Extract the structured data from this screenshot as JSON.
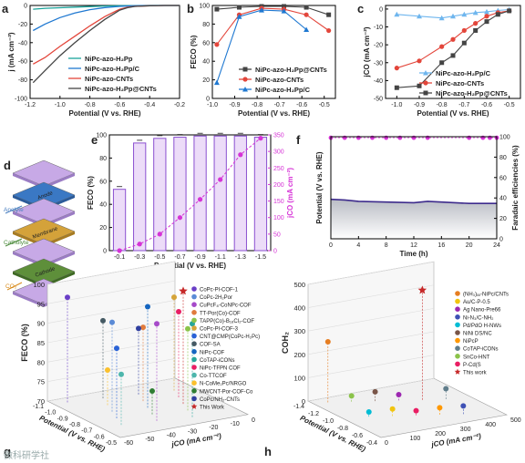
{
  "watermark": "微科研学社",
  "colors": {
    "black": "#333333",
    "red": "#e3463b",
    "blue": "#1f78d1",
    "violet": "#b157e0",
    "magenta": "#d633d6",
    "teal": "#1aa39a",
    "lightblue": "#6fb6ee",
    "star": "#c62828"
  },
  "chart_data": [
    {
      "panel": "a",
      "type": "line",
      "xlabel": "Potential (V vs. RHE)",
      "ylabel": "j (mA cm⁻²)",
      "xlim": [
        -1.2,
        -0.2
      ],
      "ylim": [
        -100,
        0
      ],
      "xticks": [
        "-1.2",
        "-1.0",
        "-0.8",
        "-0.6",
        "-0.4",
        "-0.2"
      ],
      "yticks": [
        "-100",
        "-80",
        "-60",
        "-40",
        "-20",
        "0"
      ],
      "series": [
        {
          "name": "NiPc-azo-H₂Pp",
          "color": "#1aa39a",
          "x": [
            -1.18,
            -1.1,
            -1.0,
            -0.9,
            -0.8,
            -0.7,
            -0.6,
            -0.5,
            -0.4,
            -0.3,
            -0.2
          ],
          "y": [
            -4,
            -3,
            -2.5,
            -1.8,
            -1.2,
            -0.6,
            -0.3,
            -0.1,
            0,
            0,
            0
          ]
        },
        {
          "name": "NiPc-azo-H₂Pp/C",
          "color": "#1f78d1",
          "x": [
            -1.18,
            -1.1,
            -1.0,
            -0.9,
            -0.8,
            -0.7,
            -0.6,
            -0.5,
            -0.4,
            -0.3,
            -0.2
          ],
          "y": [
            -27,
            -20,
            -13,
            -8,
            -4.5,
            -2.3,
            -1,
            -0.3,
            0,
            0,
            0
          ]
        },
        {
          "name": "NiPc-azo-CNTs",
          "color": "#e3463b",
          "x": [
            -1.18,
            -1.1,
            -1.0,
            -0.9,
            -0.8,
            -0.7,
            -0.6,
            -0.55,
            -0.5,
            -0.4,
            -0.3,
            -0.2
          ],
          "y": [
            -63,
            -56,
            -44,
            -33,
            -22,
            -12,
            -4,
            -2,
            -1,
            -0.3,
            0,
            0
          ]
        },
        {
          "name": "NiPc-azo-H₂Pp@CNTs",
          "color": "#444444",
          "x": [
            -1.18,
            -1.1,
            -1.0,
            -0.9,
            -0.8,
            -0.7,
            -0.6,
            -0.55,
            -0.5,
            -0.4,
            -0.3,
            -0.2
          ],
          "y": [
            -83,
            -70,
            -54,
            -40,
            -27,
            -15,
            -5,
            -2.5,
            -1,
            -0.3,
            0,
            0
          ]
        }
      ],
      "legend": "bottom-right"
    },
    {
      "panel": "b",
      "type": "line",
      "xlabel": "Potential (V vs. RHE)",
      "ylabel": "FECO (%)",
      "xlim": [
        -1.0,
        -0.45
      ],
      "ylim": [
        0,
        100
      ],
      "xticks": [
        "-1.0",
        "-0.9",
        "-0.8",
        "-0.7",
        "-0.6",
        "-0.5"
      ],
      "yticks": [
        "0",
        "20",
        "40",
        "60",
        "80",
        "100"
      ],
      "series": [
        {
          "name": "NiPc-azo-H₂Pp@CNTs",
          "color": "#444444",
          "marker": "square",
          "x": [
            -0.98,
            -0.88,
            -0.78,
            -0.68,
            -0.58,
            -0.48
          ],
          "y": [
            96,
            98,
            99,
            99,
            98,
            90
          ]
        },
        {
          "name": "NiPc-azo-CNTs",
          "color": "#e3463b",
          "marker": "circle",
          "x": [
            -0.98,
            -0.88,
            -0.78,
            -0.68,
            -0.58,
            -0.48
          ],
          "y": [
            58,
            90,
            97,
            96,
            90,
            73
          ]
        },
        {
          "name": "NiPc-azo-H₂Pp/C",
          "color": "#1f78d1",
          "marker": "triangle",
          "x": [
            -0.98,
            -0.88,
            -0.78,
            -0.68,
            -0.58
          ],
          "y": [
            17,
            88,
            95,
            94,
            74
          ]
        }
      ],
      "legend": "bottom-right"
    },
    {
      "panel": "c",
      "type": "line",
      "xlabel": "Potential (V vs. RHE)",
      "ylabel": "jCO (mA cm⁻²)",
      "xlim": [
        -1.05,
        -0.45
      ],
      "ylim": [
        -50,
        2
      ],
      "xticks": [
        "-1.0",
        "-0.9",
        "-0.8",
        "-0.7",
        "-0.6",
        "-0.5"
      ],
      "yticks": [
        "-50",
        "-40",
        "-30",
        "-20",
        "-10",
        "0"
      ],
      "series": [
        {
          "name": "NiPc-azo-H₂Pp/C",
          "color": "#6fb6ee",
          "marker": "triangle",
          "x": [
            -1.0,
            -0.9,
            -0.8,
            -0.75,
            -0.7,
            -0.65,
            -0.6,
            -0.55,
            -0.5
          ],
          "y": [
            -3,
            -4,
            -5,
            -4,
            -3,
            -2,
            -1.5,
            -0.8,
            -0.3
          ]
        },
        {
          "name": "NiPc-azo-CNTs",
          "color": "#e3463b",
          "marker": "circle",
          "x": [
            -1.0,
            -0.9,
            -0.8,
            -0.75,
            -0.7,
            -0.65,
            -0.6,
            -0.55,
            -0.5
          ],
          "y": [
            -33,
            -29,
            -21,
            -17,
            -12,
            -8,
            -4,
            -2,
            -1
          ]
        },
        {
          "name": "NiPc-azo-H₂Pp@CNTs",
          "color": "#444444",
          "marker": "square",
          "x": [
            -1.0,
            -0.9,
            -0.8,
            -0.75,
            -0.7,
            -0.65,
            -0.6,
            -0.55,
            -0.5
          ],
          "y": [
            -44,
            -43,
            -30,
            -26,
            -19,
            -12,
            -7,
            -3,
            -1
          ]
        }
      ],
      "legend": "bottom-left"
    },
    {
      "panel": "d",
      "type": "diagram",
      "layers": [
        "Anode",
        "Membrane",
        "Cathode"
      ],
      "labels": [
        "Anolyte",
        "Catholyte",
        "CO₂"
      ]
    },
    {
      "panel": "e",
      "type": "bar",
      "xlabel": "Potential (V vs. RHE)",
      "ylabel": "FECO (%)",
      "y2label": "jCO (mA cm⁻²)",
      "categories": [
        "-0.1",
        "-0.3",
        "-0.5",
        "-0.7",
        "-0.9",
        "-1.1",
        "-1.3",
        "-1.5"
      ],
      "values": [
        53,
        93,
        97,
        98,
        99,
        99,
        99,
        98
      ],
      "ylim": [
        0,
        100
      ],
      "yticks": [
        "0",
        "20",
        "40",
        "60",
        "80",
        "100"
      ],
      "y2lim": [
        0,
        350
      ],
      "y2ticks": [
        "0",
        "50",
        "100",
        "150",
        "200",
        "250",
        "300",
        "350"
      ],
      "line": {
        "name": "jCO",
        "color": "#d633d6",
        "x": [
          "-0.1",
          "-0.3",
          "-0.5",
          "-0.7",
          "-0.9",
          "-1.1",
          "-1.3",
          "-1.5"
        ],
        "y": [
          0,
          20,
          50,
          100,
          155,
          215,
          290,
          340
        ]
      }
    },
    {
      "panel": "f",
      "type": "line",
      "xlabel": "Time (h)",
      "ylabel": "Potential (V vs. RHE)",
      "y2label": "Faradaic efficiencies (%)",
      "xlim": [
        0,
        24
      ],
      "xticks": [
        "0",
        "4",
        "8",
        "12",
        "16",
        "20",
        "24"
      ],
      "ylim": [
        -1.5,
        0
      ],
      "y2lim": [
        0,
        100
      ],
      "y2ticks": [
        "0",
        "20",
        "40",
        "60",
        "80",
        "100"
      ],
      "series": [
        {
          "name": "Potential",
          "color": "#3d2b8c",
          "x": [
            0,
            2,
            4,
            8,
            12,
            14,
            16,
            20,
            24
          ],
          "y": [
            -0.92,
            -0.93,
            -0.95,
            -0.96,
            -0.97,
            -0.95,
            -0.96,
            -0.98,
            -0.98
          ]
        },
        {
          "name": "FE",
          "color": "#d633d6",
          "x": [
            0,
            2,
            4,
            6,
            8,
            10,
            12,
            14,
            20,
            22,
            23,
            24
          ],
          "y": [
            99,
            99,
            99,
            99,
            99,
            99,
            99,
            99,
            99,
            99,
            99,
            99
          ]
        }
      ]
    },
    {
      "panel": "g",
      "type": "scatter",
      "xlabel": "Potential (V vs. RHE)",
      "ylabel": "FECO (%)",
      "zlabel": "jCO (mA cm⁻²)",
      "ylim": [
        70,
        100
      ],
      "yticks": [
        "70",
        "75",
        "80",
        "85",
        "90",
        "95",
        "100"
      ],
      "xticks": [
        "-1.1",
        "-1.0",
        "-0.9",
        "-0.8",
        "-0.7",
        "-0.6",
        "-0.5"
      ],
      "zticks": [
        "-60",
        "-50",
        "-40",
        "-30",
        "-20",
        "-10",
        "0"
      ],
      "series": [
        {
          "name": "CoPc-Pl-COF-1",
          "color": "#6a3fc7",
          "y": 97
        },
        {
          "name": "CoPc-2H₂Por",
          "color": "#5b8bd6",
          "y": 93
        },
        {
          "name": "CuPcF₈-CoNPc-COF",
          "color": "#a64ac9",
          "y": 95
        },
        {
          "name": "TT-Por(Co)-COF",
          "color": "#e07b3d",
          "y": 89
        },
        {
          "name": "TAPP(Co)-B₁₈Cl₂-COF",
          "color": "#8bc34a",
          "y": 91
        },
        {
          "name": "CoPc-Pl-COF-3",
          "color": "#d5a439",
          "y": 94
        },
        {
          "name": "CNT@CMP(CoPc-H₂Pc)",
          "color": "#2962d6",
          "y": 88
        },
        {
          "name": "COF-SA",
          "color": "#455a64",
          "y": 90
        },
        {
          "name": "NiPc-COF",
          "color": "#1565c0",
          "y": 96
        },
        {
          "name": "CoTAP-iCONs",
          "color": "#26a69a",
          "y": 94
        },
        {
          "name": "NiPc-TFPN COF",
          "color": "#e91e63",
          "y": 92
        },
        {
          "name": "Co-TTCOF",
          "color": "#4db6ac",
          "y": 83
        },
        {
          "name": "N-CoMe₂Pc/NRGO",
          "color": "#fbc02d",
          "y": 79
        },
        {
          "name": "MWCNT-Por-COF-Co",
          "color": "#2e7d32",
          "y": 76
        },
        {
          "name": "CoPc/NH₂-CNTs",
          "color": "#303f9f",
          "y": 87
        },
        {
          "name": "This Work",
          "color": "#c62828",
          "y": 99
        }
      ]
    },
    {
      "panel": "h",
      "type": "scatter",
      "xlabel": "Potential (V vs. RHE)",
      "ylabel": "COH₂",
      "zlabel": "jCO (mA cm⁻²)",
      "ylim": [
        0,
        500
      ],
      "yticks": [
        "0",
        "100",
        "200",
        "300",
        "400",
        "500"
      ],
      "xticks": [
        "-1.4",
        "-1.2",
        "-1.0",
        "-0.8",
        "-0.6",
        "-0.4"
      ],
      "zticks": [
        "0",
        "100",
        "200",
        "300",
        "400",
        "500"
      ],
      "series": [
        {
          "name": "(NH₃)ₓₓ-NiPc/CNTs",
          "color": "#e67e22",
          "y": 260
        },
        {
          "name": "Au/C-P-0.5",
          "color": "#f1c40f",
          "y": 30
        },
        {
          "name": "Ag Nano-Pre66",
          "color": "#9c27b0",
          "y": 25
        },
        {
          "name": "Ni-N₃/C-NH₂",
          "color": "#3f51b5",
          "y": 35
        },
        {
          "name": "Pd/PdO H-NWs",
          "color": "#00bcd4",
          "y": 20
        },
        {
          "name": "NiNi DS/NC",
          "color": "#795548",
          "y": 40
        },
        {
          "name": "NiPcP",
          "color": "#ff9800",
          "y": 30
        },
        {
          "name": "CoTAP-iCONs",
          "color": "#607d8b",
          "y": 45
        },
        {
          "name": "SnCo-HNT",
          "color": "#8bc34a",
          "y": 25
        },
        {
          "name": "P-Cd(S",
          "color": "#e91e63",
          "y": 20
        },
        {
          "name": "This work",
          "color": "#c62828",
          "y": 470
        }
      ]
    }
  ]
}
